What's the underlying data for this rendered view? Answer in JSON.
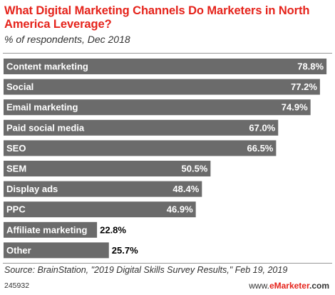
{
  "chart_data": {
    "type": "bar",
    "orientation": "horizontal",
    "title": "What Digital Marketing Channels Do Marketers in North America Leverage?",
    "subtitle": "% of respondents, Dec 2018",
    "categories": [
      "Content marketing",
      "Social",
      "Email marketing",
      "Paid social media",
      "SEO",
      "SEM",
      "Display ads",
      "PPC",
      "Affiliate marketing",
      "Other"
    ],
    "values": [
      78.8,
      77.2,
      74.9,
      67.0,
      66.5,
      50.5,
      48.4,
      46.9,
      22.8,
      25.7
    ],
    "value_labels": [
      "78.8%",
      "77.2%",
      "74.9%",
      "67.0%",
      "66.5%",
      "50.5%",
      "48.4%",
      "46.9%",
      "22.8%",
      "25.7%"
    ],
    "xlim": [
      0,
      80
    ],
    "grid": false,
    "legend": "none",
    "bar_color": "#6b6b6b",
    "accent_color": "#e5231b"
  },
  "footer": {
    "source": "Source: BrainStation, \"2019 Digital Skills Survey Results,\" Feb 19, 2019",
    "chart_id": "245932",
    "brand_prefix": "www.",
    "brand_name": "eMarketer",
    "brand_suffix": ".com"
  }
}
